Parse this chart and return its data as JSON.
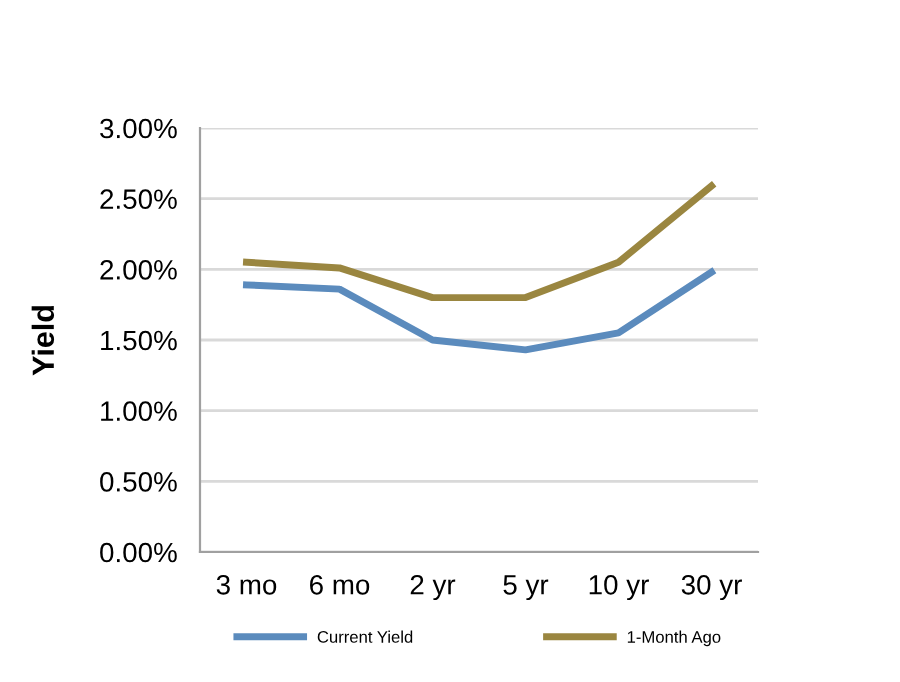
{
  "chart_data": {
    "type": "line",
    "ylabel": "Yield",
    "categories": [
      "3 mo",
      "6 mo",
      "2 yr",
      "5 yr",
      "10 yr",
      "30 yr"
    ],
    "series": [
      {
        "name": "Current Yield",
        "color": "#5b8bbd",
        "values": [
          1.89,
          1.86,
          1.5,
          1.43,
          1.55,
          1.98
        ]
      },
      {
        "name": "1-Month Ago",
        "color": "#9a8640",
        "values": [
          2.05,
          2.01,
          1.8,
          1.8,
          2.05,
          2.59
        ]
      }
    ],
    "ylim": [
      0,
      3
    ],
    "yticks": [
      {
        "value": 0,
        "label": "0.00%"
      },
      {
        "value": 0.5,
        "label": "0.50%"
      },
      {
        "value": 1,
        "label": "1.00%"
      },
      {
        "value": 1.5,
        "label": "1.50%"
      },
      {
        "value": 2,
        "label": "2.00%"
      },
      {
        "value": 2.5,
        "label": "2.50%"
      },
      {
        "value": 3,
        "label": "3.00%"
      }
    ],
    "grid": "y",
    "legend": "bottom",
    "marker": "none",
    "line_style": "solid"
  }
}
